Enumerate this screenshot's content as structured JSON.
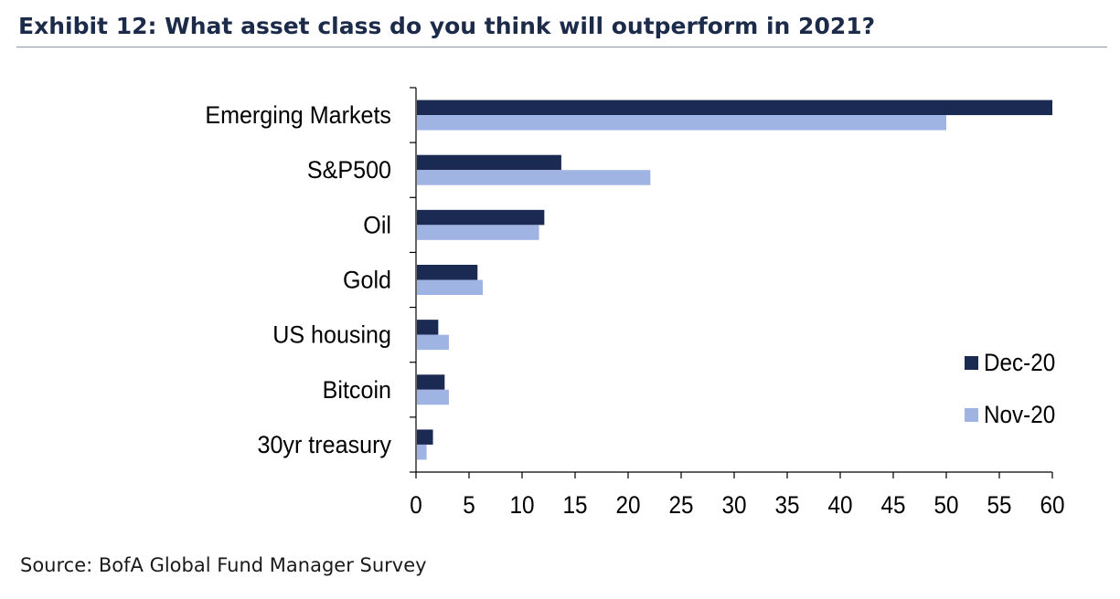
{
  "title": "Exhibit 12: What asset class do you think will outperform in 2021?",
  "source": "Source: BofA Global Fund Manager Survey",
  "chart_data": {
    "type": "bar",
    "orientation": "horizontal",
    "categories": [
      "Emerging Markets",
      "S&P500",
      "Oil",
      "Gold",
      "US housing",
      "Bitcoin",
      "30yr treasury"
    ],
    "series": [
      {
        "name": "Dec-20",
        "color": "#1b2a52",
        "values": [
          60,
          13.7,
          12.1,
          5.8,
          2.1,
          2.7,
          1.6
        ]
      },
      {
        "name": "Nov-20",
        "color": "#a0b4e4",
        "values": [
          50,
          22.1,
          11.6,
          6.3,
          3.1,
          3.1,
          1.0
        ]
      }
    ],
    "xlim": [
      0,
      60
    ],
    "xticks": [
      0,
      5,
      10,
      15,
      20,
      25,
      30,
      35,
      40,
      45,
      50,
      55,
      60
    ],
    "legend_position": "right",
    "grid": false
  }
}
